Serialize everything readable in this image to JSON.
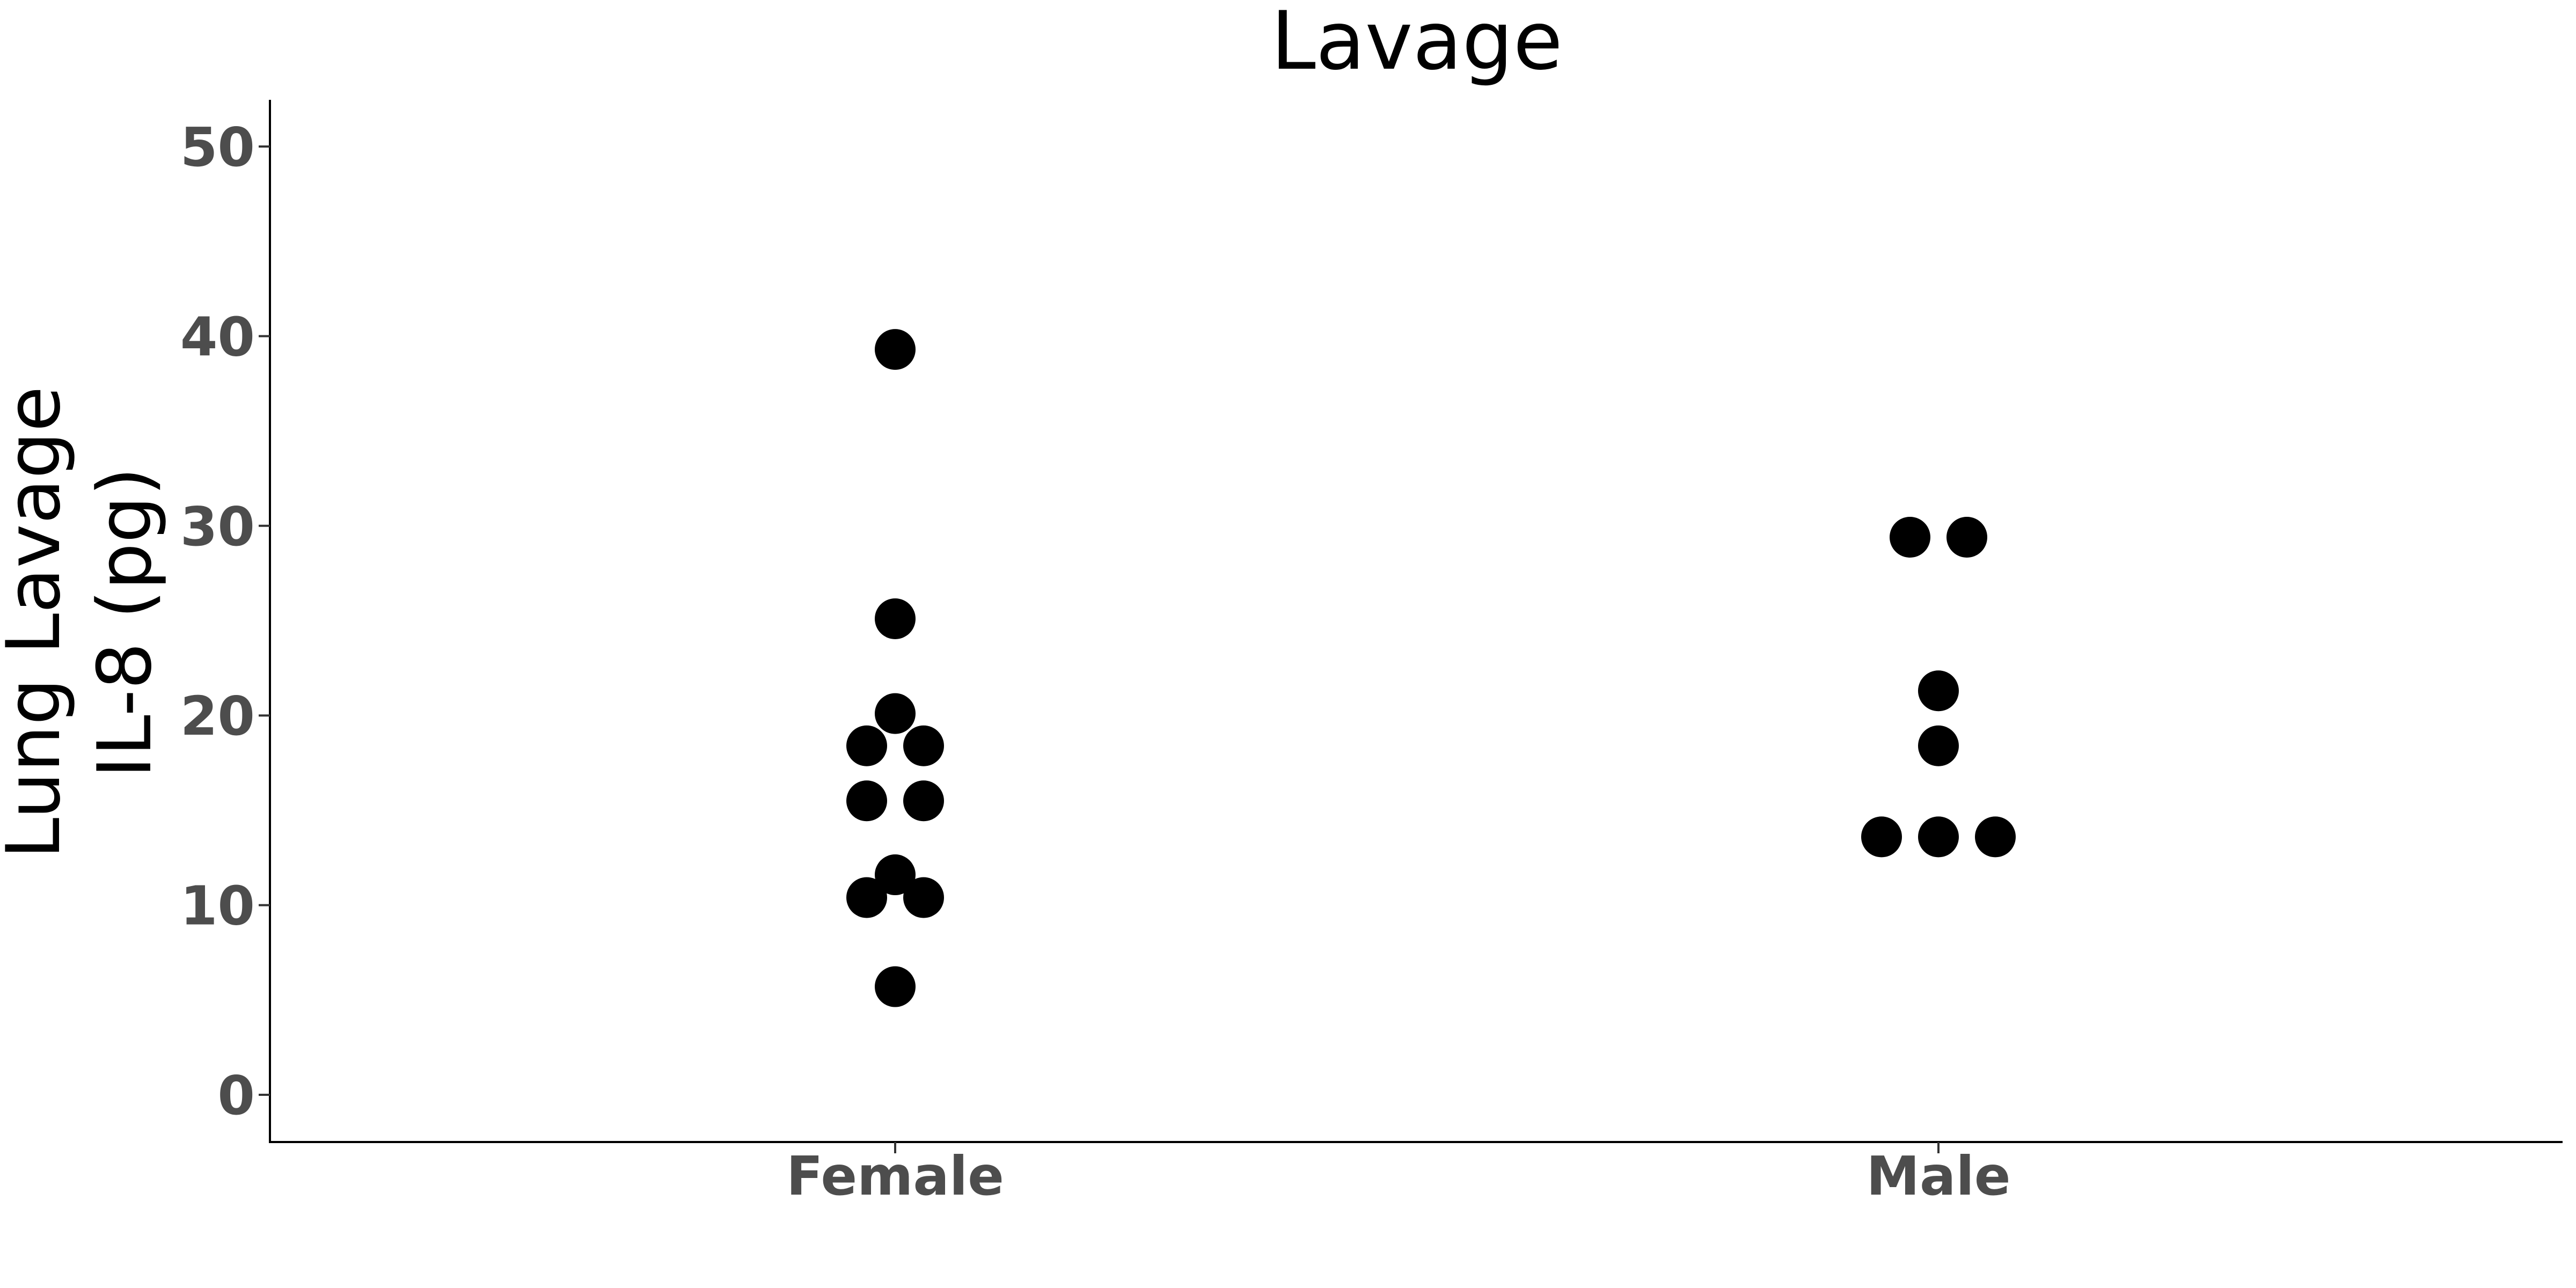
{
  "chart_data": {
    "type": "scatter",
    "title": "Lavage",
    "xlabel": "",
    "ylabel": [
      "Lung Lavage",
      "IL-8 (pg)"
    ],
    "categories": [
      "Female",
      "Male"
    ],
    "ylim": [
      -2.5,
      52.5
    ],
    "yticks": [
      0,
      10,
      20,
      30,
      40,
      50
    ],
    "grid": false,
    "point_color": "#000000",
    "tick_label_color": "#4d4d4d",
    "series": [
      {
        "category": "Female",
        "values": [
          39.3,
          25.1,
          20.1,
          18.4,
          18.4,
          15.5,
          15.5,
          11.6,
          10.4,
          10.4,
          5.7
        ]
      },
      {
        "category": "Male",
        "values": [
          29.4,
          29.4,
          21.3,
          18.4,
          13.6,
          13.6,
          13.6
        ]
      }
    ]
  }
}
